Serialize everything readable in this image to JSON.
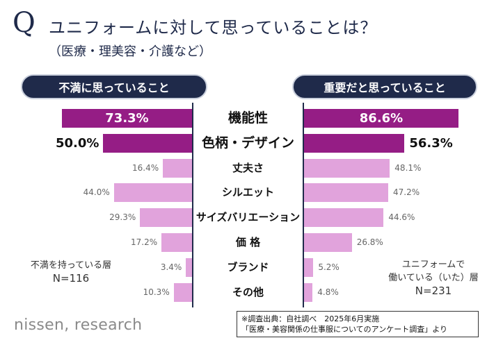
{
  "header": {
    "q_mark": "Q",
    "title": "ユニフォームに対して思っていることは？",
    "subtitle": "（医療・理美容・介護など）"
  },
  "left_panel": {
    "label": "不満に思っていること",
    "note_line1": "不満を持っている層",
    "note_line2": "N=116"
  },
  "right_panel": {
    "label": "重要だと思っていること",
    "note_line1": "ユニフォームで",
    "note_line2": "働いている（いた）層",
    "note_line3": "N=231"
  },
  "chart_data": {
    "type": "bar",
    "title": "ユニフォームに対して思っていることは？",
    "categories": [
      "機能性",
      "色柄・デザイン",
      "丈夫さ",
      "シルエット",
      "サイズバリエーション",
      "価 格",
      "ブランド",
      "その他"
    ],
    "series": [
      {
        "name": "不満に思っていること",
        "values": [
          73.3,
          50.0,
          16.4,
          44.0,
          29.3,
          17.2,
          3.4,
          10.3
        ],
        "labels": [
          "73.3%",
          "50.0%",
          "16.4%",
          "44.0%",
          "29.3%",
          "17.2%",
          "3.4%",
          "10.3%"
        ]
      },
      {
        "name": "重要だと思っていること",
        "values": [
          86.6,
          56.3,
          48.1,
          47.2,
          44.6,
          26.8,
          5.2,
          4.8
        ],
        "labels": [
          "86.6%",
          "56.3%",
          "48.1%",
          "47.2%",
          "44.6%",
          "26.8%",
          "5.2%",
          "4.8%"
        ]
      }
    ],
    "xlim": [
      0,
      100
    ],
    "highlight_top": 2,
    "colors": {
      "strong": "#951d85",
      "light": "#e1a3dc",
      "navy": "#1f2a4a"
    }
  },
  "footer": {
    "logo": "nissen, research",
    "source_line1": "※調査出典：自社調べ　2025年6月実施",
    "source_line2": "「医療・美容関係の仕事服についてのアンケート調査」より"
  }
}
